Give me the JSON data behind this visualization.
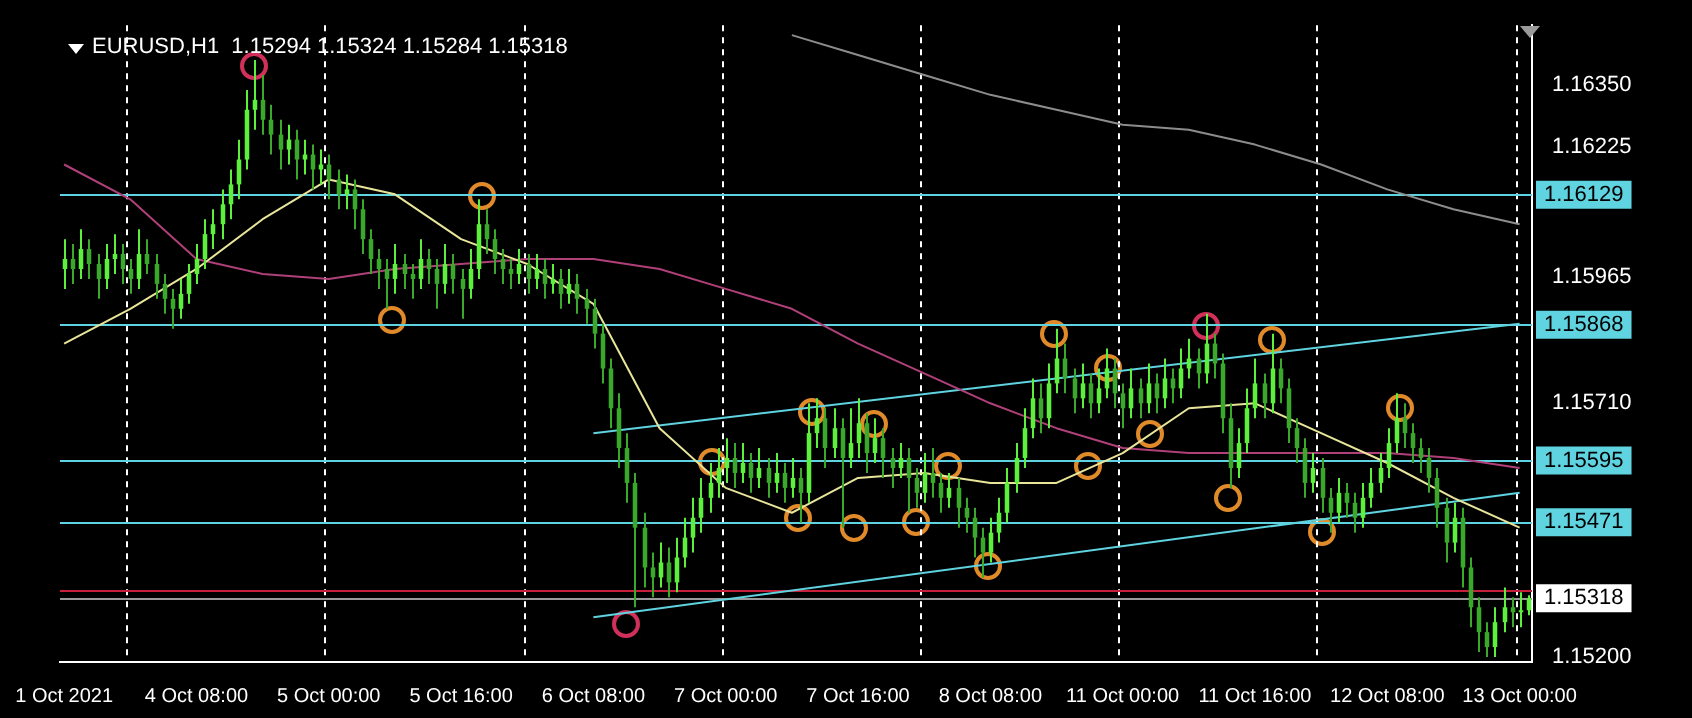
{
  "chart_data": {
    "type": "candlestick",
    "title": "EURUSD,H1  1.15294 1.15324 1.15284 1.15318",
    "colors": [
      "#5cf03c",
      "#3aa82a",
      "#5cf03c",
      "#3aa82a",
      "#3aa82a",
      "#5cf03c",
      "#5cf03c",
      "#3aa82a",
      "#3aa82a",
      "#5cf03c",
      "#3aa82a",
      "#3aa82a",
      "#3aa82a",
      "#3aa82a",
      "#5cf03c",
      "#5cf03c",
      "#5cf03c",
      "#5cf03c",
      "#5cf03c",
      "#5cf03c",
      "#5cf03c",
      "#5cf03c",
      "#5cf03c",
      "#5cf03c",
      "#3aa82a",
      "#3aa82a",
      "#3aa82a",
      "#5cf03c",
      "#3aa82a",
      "#5cf03c",
      "#3aa82a",
      "#5cf03c",
      "#3aa82a",
      "#3aa82a",
      "#5cf03c",
      "#3aa82a",
      "#3aa82a",
      "#3aa82a",
      "#3aa82a",
      "#3aa82a",
      "#5cf03c",
      "#3aa82a",
      "#3aa82a",
      "#5cf03c",
      "#3aa82a",
      "#3aa82a",
      "#5cf03c",
      "#3aa82a",
      "#3aa82a",
      "#5cf03c",
      "#5cf03c",
      "#3aa82a",
      "#3aa82a",
      "#3aa82a",
      "#3aa82a",
      "#5cf03c",
      "#3aa82a",
      "#5cf03c",
      "#3aa82a",
      "#5cf03c",
      "#3aa82a",
      "#5cf03c",
      "#3aa82a",
      "#3aa82a",
      "#3aa82a",
      "#3aa82a",
      "#3aa82a",
      "#3aa82a",
      "#3aa82a",
      "#3aa82a",
      "#3aa82a",
      "#3aa82a",
      "#5cf03c",
      "#3aa82a",
      "#5cf03c",
      "#5cf03c",
      "#5cf03c",
      "#5cf03c",
      "#5cf03c",
      "#5cf03c",
      "#5cf03c",
      "#3aa82a",
      "#5cf03c",
      "#3aa82a",
      "#5cf03c",
      "#3aa82a",
      "#5cf03c",
      "#3aa82a",
      "#5cf03c",
      "#3aa82a",
      "#5cf03c",
      "#5cf03c",
      "#3aa82a",
      "#5cf03c",
      "#3aa82a",
      "#5cf03c",
      "#5cf03c",
      "#3aa82a",
      "#5cf03c",
      "#3aa82a",
      "#3aa82a",
      "#5cf03c",
      "#3aa82a",
      "#3aa82a",
      "#5cf03c",
      "#3aa82a",
      "#3aa82a",
      "#5cf03c",
      "#3aa82a",
      "#3aa82a",
      "#3aa82a",
      "#3aa82a",
      "#5cf03c",
      "#5cf03c",
      "#5cf03c",
      "#5cf03c",
      "#5cf03c",
      "#5cf03c",
      "#3aa82a",
      "#5cf03c",
      "#5cf03c",
      "#3aa82a",
      "#3aa82a",
      "#5cf03c",
      "#3aa82a",
      "#5cf03c",
      "#5cf03c",
      "#3aa82a",
      "#3aa82a",
      "#5cf03c",
      "#3aa82a",
      "#5cf03c",
      "#3aa82a",
      "#5cf03c",
      "#3aa82a",
      "#5cf03c",
      "#5cf03c",
      "#3aa82a",
      "#5cf03c",
      "#3aa82a",
      "#3aa82a",
      "#3aa82a",
      "#5cf03c",
      "#5cf03c",
      "#5cf03c",
      "#3aa82a",
      "#5cf03c",
      "#3aa82a",
      "#3aa82a",
      "#3aa82a",
      "#3aa82a",
      "#5cf03c",
      "#3aa82a",
      "#3aa82a",
      "#5cf03c",
      "#3aa82a",
      "#3aa82a",
      "#5cf03c",
      "#5cf03c",
      "#5cf03c",
      "#5cf03c",
      "#5cf03c",
      "#3aa82a",
      "#3aa82a",
      "#3aa82a",
      "#3aa82a",
      "#3aa82a",
      "#3aa82a",
      "#5cf03c",
      "#3aa82a",
      "#3aa82a",
      "#3aa82a",
      "#3aa82a",
      "#5cf03c",
      "#5cf03c",
      "#3aa82a",
      "#5cf03c",
      "#5cf03c"
    ],
    "categories": [
      "1 Oct 2021",
      null,
      null,
      null,
      null,
      null,
      null,
      null,
      null,
      null,
      null,
      null,
      null,
      null,
      null,
      null,
      "4 Oct 08:00",
      null,
      null,
      null,
      null,
      null,
      null,
      null,
      null,
      null,
      null,
      null,
      null,
      null,
      null,
      null,
      "5 Oct 00:00",
      null,
      null,
      null,
      null,
      null,
      null,
      null,
      null,
      null,
      null,
      null,
      null,
      null,
      null,
      null,
      "5 Oct 16:00",
      null,
      null,
      null,
      null,
      null,
      null,
      null,
      null,
      null,
      null,
      null,
      null,
      null,
      null,
      null,
      "6 Oct 08:00",
      null,
      null,
      null,
      null,
      null,
      null,
      null,
      null,
      null,
      null,
      null,
      null,
      null,
      null,
      null,
      "7 Oct 00:00",
      null,
      null,
      null,
      null,
      null,
      null,
      null,
      null,
      null,
      null,
      null,
      null,
      null,
      null,
      null,
      "7 Oct 16:00",
      null,
      null,
      null,
      null,
      null,
      null,
      null,
      null,
      null,
      null,
      null,
      null,
      null,
      null,
      null,
      "8 Oct 08:00",
      null,
      null,
      null,
      null,
      null,
      null,
      null,
      null,
      null,
      null,
      null,
      null,
      null,
      null,
      null,
      "11 Oct 00:00",
      null,
      null,
      null,
      null,
      null,
      null,
      null,
      null,
      null,
      null,
      null,
      null,
      null,
      null,
      null,
      "11 Oct 16:00",
      null,
      null,
      null,
      null,
      null,
      null,
      null,
      null,
      null,
      null,
      null,
      null,
      null,
      null,
      null,
      "12 Oct 08:00",
      null,
      null,
      null,
      null,
      null,
      null,
      null,
      null,
      null,
      null,
      null,
      null,
      null,
      null,
      null,
      "13 Oct 00:00",
      null
    ],
    "ohlc": [
      [
        1.1598,
        1.1604,
        1.1594,
        1.16
      ],
      [
        1.16,
        1.1603,
        1.1595,
        1.1598
      ],
      [
        1.1598,
        1.1606,
        1.1596,
        1.1602
      ],
      [
        1.1602,
        1.1604,
        1.1596,
        1.1599
      ],
      [
        1.1599,
        1.1601,
        1.1592,
        1.1596
      ],
      [
        1.1596,
        1.1603,
        1.1594,
        1.16
      ],
      [
        1.16,
        1.1605,
        1.1597,
        1.1601
      ],
      [
        1.1601,
        1.1603,
        1.1595,
        1.1598
      ],
      [
        1.1598,
        1.16,
        1.1593,
        1.1596
      ],
      [
        1.1596,
        1.1606,
        1.1594,
        1.1601
      ],
      [
        1.1601,
        1.1604,
        1.1597,
        1.1599
      ],
      [
        1.1599,
        1.1601,
        1.1592,
        1.1595
      ],
      [
        1.1595,
        1.1597,
        1.1589,
        1.1592
      ],
      [
        1.1592,
        1.1594,
        1.1586,
        1.159
      ],
      [
        1.159,
        1.1596,
        1.1588,
        1.1593
      ],
      [
        1.1593,
        1.1599,
        1.1591,
        1.1597
      ],
      [
        1.1597,
        1.1603,
        1.1595,
        1.16
      ],
      [
        1.16,
        1.1608,
        1.1598,
        1.1605
      ],
      [
        1.1605,
        1.161,
        1.1602,
        1.1607
      ],
      [
        1.1607,
        1.1614,
        1.1604,
        1.1611
      ],
      [
        1.1611,
        1.1618,
        1.1608,
        1.1615
      ],
      [
        1.1615,
        1.1624,
        1.1612,
        1.162
      ],
      [
        1.162,
        1.1634,
        1.1618,
        1.163
      ],
      [
        1.163,
        1.164,
        1.1626,
        1.1632
      ],
      [
        1.1632,
        1.1637,
        1.1625,
        1.1628
      ],
      [
        1.1628,
        1.1631,
        1.1621,
        1.1625
      ],
      [
        1.1625,
        1.1628,
        1.1618,
        1.1622
      ],
      [
        1.1622,
        1.1627,
        1.1619,
        1.1624
      ],
      [
        1.1624,
        1.1626,
        1.1616,
        1.162
      ],
      [
        1.162,
        1.1624,
        1.1617,
        1.1621
      ],
      [
        1.1621,
        1.1623,
        1.1614,
        1.1618
      ],
      [
        1.1618,
        1.1622,
        1.1615,
        1.1619
      ],
      [
        1.1619,
        1.1621,
        1.1612,
        1.1616
      ],
      [
        1.1616,
        1.1618,
        1.161,
        1.1613
      ],
      [
        1.1613,
        1.1617,
        1.161,
        1.1614
      ],
      [
        1.1614,
        1.1616,
        1.1606,
        1.161
      ],
      [
        1.161,
        1.1612,
        1.1601,
        1.1604
      ],
      [
        1.1604,
        1.1606,
        1.1597,
        1.16
      ],
      [
        1.16,
        1.1602,
        1.1594,
        1.1598
      ],
      [
        1.1598,
        1.16,
        1.159,
        1.1596
      ],
      [
        1.1596,
        1.1603,
        1.1593,
        1.1599
      ],
      [
        1.1599,
        1.1601,
        1.1594,
        1.1597
      ],
      [
        1.1597,
        1.1599,
        1.1592,
        1.1596
      ],
      [
        1.1596,
        1.1604,
        1.1594,
        1.16
      ],
      [
        1.16,
        1.1602,
        1.1595,
        1.1598
      ],
      [
        1.1598,
        1.16,
        1.159,
        1.1595
      ],
      [
        1.1595,
        1.1603,
        1.1593,
        1.1599
      ],
      [
        1.1599,
        1.1601,
        1.1593,
        1.1596
      ],
      [
        1.1596,
        1.1598,
        1.1588,
        1.1594
      ],
      [
        1.1594,
        1.1602,
        1.1592,
        1.1598
      ],
      [
        1.1598,
        1.1612,
        1.1596,
        1.1607
      ],
      [
        1.1607,
        1.161,
        1.1601,
        1.1604
      ],
      [
        1.1604,
        1.1606,
        1.1597,
        1.16
      ],
      [
        1.16,
        1.1602,
        1.1595,
        1.1598
      ],
      [
        1.1598,
        1.16,
        1.1594,
        1.1597
      ],
      [
        1.1597,
        1.1602,
        1.1595,
        1.1599
      ],
      [
        1.1599,
        1.1601,
        1.1593,
        1.1596
      ],
      [
        1.1596,
        1.1601,
        1.1594,
        1.1598
      ],
      [
        1.1598,
        1.16,
        1.1592,
        1.1595
      ],
      [
        1.1595,
        1.1599,
        1.1593,
        1.1596
      ],
      [
        1.1596,
        1.1598,
        1.159,
        1.1593
      ],
      [
        1.1593,
        1.1598,
        1.1591,
        1.1595
      ],
      [
        1.1595,
        1.1597,
        1.1589,
        1.1592
      ],
      [
        1.1592,
        1.1594,
        1.1587,
        1.159
      ],
      [
        1.159,
        1.1592,
        1.1582,
        1.1585
      ],
      [
        1.1585,
        1.1587,
        1.1575,
        1.1578
      ],
      [
        1.1578,
        1.158,
        1.1566,
        1.157
      ],
      [
        1.157,
        1.1573,
        1.1558,
        1.1562
      ],
      [
        1.1562,
        1.1565,
        1.1551,
        1.1555
      ],
      [
        1.1555,
        1.1557,
        1.153,
        1.1546
      ],
      [
        1.1546,
        1.1549,
        1.1534,
        1.1538
      ],
      [
        1.1538,
        1.1541,
        1.1532,
        1.1536
      ],
      [
        1.1536,
        1.1543,
        1.1534,
        1.1539
      ],
      [
        1.1539,
        1.1542,
        1.1532,
        1.1535
      ],
      [
        1.1535,
        1.1544,
        1.1533,
        1.154
      ],
      [
        1.154,
        1.1548,
        1.1538,
        1.1544
      ],
      [
        1.1544,
        1.1552,
        1.1541,
        1.1548
      ],
      [
        1.1548,
        1.1556,
        1.1545,
        1.1552
      ],
      [
        1.1552,
        1.1559,
        1.1549,
        1.1555
      ],
      [
        1.1555,
        1.1562,
        1.1552,
        1.1558
      ],
      [
        1.1558,
        1.1564,
        1.1555,
        1.156
      ],
      [
        1.156,
        1.1563,
        1.1554,
        1.1557
      ],
      [
        1.1557,
        1.1563,
        1.1555,
        1.1559
      ],
      [
        1.1559,
        1.1561,
        1.1553,
        1.1556
      ],
      [
        1.1556,
        1.1562,
        1.1554,
        1.1558
      ],
      [
        1.1558,
        1.156,
        1.1552,
        1.1555
      ],
      [
        1.1555,
        1.1561,
        1.1553,
        1.1557
      ],
      [
        1.1557,
        1.1559,
        1.1551,
        1.1554
      ],
      [
        1.1554,
        1.156,
        1.1552,
        1.1556
      ],
      [
        1.1556,
        1.1558,
        1.1547,
        1.1553
      ],
      [
        1.1553,
        1.1571,
        1.1551,
        1.1565
      ],
      [
        1.1565,
        1.1572,
        1.1562,
        1.1568
      ],
      [
        1.1568,
        1.157,
        1.1558,
        1.1562
      ],
      [
        1.1562,
        1.157,
        1.156,
        1.1566
      ],
      [
        1.1566,
        1.1568,
        1.1546,
        1.156
      ],
      [
        1.156,
        1.157,
        1.1558,
        1.1563
      ],
      [
        1.1563,
        1.1572,
        1.156,
        1.1567
      ],
      [
        1.1567,
        1.1569,
        1.1557,
        1.1561
      ],
      [
        1.1561,
        1.1568,
        1.1559,
        1.1564
      ],
      [
        1.1564,
        1.1566,
        1.1556,
        1.156
      ],
      [
        1.156,
        1.1562,
        1.1554,
        1.1558
      ],
      [
        1.1558,
        1.1563,
        1.1556,
        1.156
      ],
      [
        1.156,
        1.1562,
        1.1549,
        1.1556
      ],
      [
        1.1556,
        1.1558,
        1.155,
        1.1553
      ],
      [
        1.1553,
        1.1561,
        1.1551,
        1.1557
      ],
      [
        1.1557,
        1.1562,
        1.1552,
        1.1555
      ],
      [
        1.1555,
        1.1557,
        1.1549,
        1.1552
      ],
      [
        1.1552,
        1.1557,
        1.155,
        1.1554
      ],
      [
        1.1554,
        1.1556,
        1.1546,
        1.155
      ],
      [
        1.155,
        1.1552,
        1.1545,
        1.1548
      ],
      [
        1.1548,
        1.155,
        1.154,
        1.1544
      ],
      [
        1.1544,
        1.1546,
        1.1536,
        1.1541
      ],
      [
        1.1541,
        1.1548,
        1.1539,
        1.1545
      ],
      [
        1.1545,
        1.1552,
        1.1543,
        1.1549
      ],
      [
        1.1549,
        1.1558,
        1.1547,
        1.1555
      ],
      [
        1.1555,
        1.1563,
        1.1553,
        1.156
      ],
      [
        1.156,
        1.157,
        1.1558,
        1.1566
      ],
      [
        1.1566,
        1.1576,
        1.1564,
        1.1572
      ],
      [
        1.1572,
        1.1575,
        1.1565,
        1.1568
      ],
      [
        1.1568,
        1.1579,
        1.1566,
        1.1575
      ],
      [
        1.1575,
        1.1586,
        1.1573,
        1.158
      ],
      [
        1.158,
        1.1583,
        1.1573,
        1.1576
      ],
      [
        1.1576,
        1.1578,
        1.1569,
        1.1572
      ],
      [
        1.1572,
        1.1579,
        1.157,
        1.1575
      ],
      [
        1.1575,
        1.1577,
        1.1568,
        1.1571
      ],
      [
        1.1571,
        1.1578,
        1.1569,
        1.1574
      ],
      [
        1.1574,
        1.1582,
        1.1572,
        1.1578
      ],
      [
        1.1578,
        1.158,
        1.157,
        1.1573
      ],
      [
        1.1573,
        1.1575,
        1.1566,
        1.157
      ],
      [
        1.157,
        1.1578,
        1.1568,
        1.1574
      ],
      [
        1.1574,
        1.1576,
        1.1568,
        1.1571
      ],
      [
        1.1571,
        1.1579,
        1.1569,
        1.1575
      ],
      [
        1.1575,
        1.1577,
        1.1569,
        1.1572
      ],
      [
        1.1572,
        1.158,
        1.157,
        1.1576
      ],
      [
        1.1576,
        1.1578,
        1.1571,
        1.1574
      ],
      [
        1.1574,
        1.1582,
        1.1572,
        1.1578
      ],
      [
        1.1578,
        1.1584,
        1.1576,
        1.158
      ],
      [
        1.158,
        1.1582,
        1.1574,
        1.1577
      ],
      [
        1.1577,
        1.1589,
        1.1575,
        1.1583
      ],
      [
        1.1583,
        1.1585,
        1.1576,
        1.1579
      ],
      [
        1.1579,
        1.1581,
        1.1565,
        1.1568
      ],
      [
        1.1568,
        1.1571,
        1.1554,
        1.1558
      ],
      [
        1.1558,
        1.1566,
        1.1556,
        1.1563
      ],
      [
        1.1563,
        1.1574,
        1.1561,
        1.157
      ],
      [
        1.157,
        1.158,
        1.1568,
        1.1575
      ],
      [
        1.1575,
        1.1577,
        1.1568,
        1.1571
      ],
      [
        1.1571,
        1.1585,
        1.1569,
        1.1578
      ],
      [
        1.1578,
        1.158,
        1.1571,
        1.1574
      ],
      [
        1.1574,
        1.1576,
        1.1563,
        1.1566
      ],
      [
        1.1566,
        1.1568,
        1.1559,
        1.1562
      ],
      [
        1.1562,
        1.1564,
        1.1552,
        1.1555
      ],
      [
        1.1555,
        1.1561,
        1.1553,
        1.1558
      ],
      [
        1.1558,
        1.156,
        1.1549,
        1.1552
      ],
      [
        1.1552,
        1.1554,
        1.1545,
        1.1549
      ],
      [
        1.1549,
        1.1556,
        1.1547,
        1.1553
      ],
      [
        1.1553,
        1.1555,
        1.1548,
        1.1551
      ],
      [
        1.1551,
        1.1553,
        1.1545,
        1.1548
      ],
      [
        1.1548,
        1.1555,
        1.1546,
        1.1552
      ],
      [
        1.1552,
        1.1558,
        1.155,
        1.1555
      ],
      [
        1.1555,
        1.1561,
        1.1553,
        1.1558
      ],
      [
        1.1558,
        1.1566,
        1.1556,
        1.1563
      ],
      [
        1.1563,
        1.1573,
        1.1561,
        1.1568
      ],
      [
        1.1568,
        1.1571,
        1.1562,
        1.1565
      ],
      [
        1.1565,
        1.1567,
        1.1559,
        1.1562
      ],
      [
        1.1562,
        1.1564,
        1.1557,
        1.156
      ],
      [
        1.156,
        1.1562,
        1.1553,
        1.1556
      ],
      [
        1.1556,
        1.1558,
        1.1546,
        1.155
      ],
      [
        1.155,
        1.1552,
        1.1539,
        1.1543
      ],
      [
        1.1543,
        1.1551,
        1.1541,
        1.1548
      ],
      [
        1.1548,
        1.155,
        1.1534,
        1.1538
      ],
      [
        1.1538,
        1.154,
        1.1526,
        1.153
      ],
      [
        1.153,
        1.1532,
        1.1521,
        1.1525
      ],
      [
        1.1525,
        1.1527,
        1.152,
        1.1522
      ],
      [
        1.1522,
        1.153,
        1.152,
        1.1527
      ],
      [
        1.1527,
        1.1534,
        1.1525,
        1.153
      ],
      [
        1.153,
        1.1532,
        1.1526,
        1.1529
      ],
      [
        1.1529,
        1.1533,
        1.1526,
        1.15294
      ],
      [
        1.15294,
        1.15324,
        1.15284,
        1.15318
      ]
    ],
    "series": [
      {
        "type": "line",
        "color": "#e8e59a",
        "values": [
          1.1583,
          null,
          null,
          null,
          null,
          null,
          null,
          null,
          1.159,
          null,
          null,
          null,
          null,
          null,
          null,
          null,
          1.1598,
          null,
          null,
          null,
          null,
          null,
          null,
          null,
          1.1608,
          null,
          null,
          null,
          null,
          null,
          null,
          null,
          1.1616,
          null,
          null,
          null,
          null,
          null,
          null,
          null,
          1.1613,
          null,
          null,
          null,
          null,
          null,
          null,
          null,
          1.1604,
          null,
          null,
          null,
          null,
          null,
          null,
          null,
          1.1599,
          null,
          null,
          null,
          null,
          null,
          null,
          null,
          1.1591,
          null,
          null,
          null,
          null,
          null,
          null,
          null,
          1.1566,
          null,
          null,
          null,
          null,
          null,
          null,
          null,
          1.1554,
          null,
          null,
          null,
          null,
          null,
          null,
          null,
          1.1549,
          null,
          null,
          null,
          null,
          null,
          null,
          null,
          1.1556,
          null,
          null,
          null,
          null,
          null,
          null,
          null,
          1.1557,
          null,
          null,
          null,
          null,
          null,
          null,
          null,
          1.1555,
          null,
          null,
          null,
          null,
          null,
          null,
          null,
          1.1555,
          null,
          null,
          null,
          null,
          null,
          null,
          null,
          1.1561,
          null,
          null,
          null,
          null,
          null,
          null,
          null,
          1.157,
          null,
          null,
          null,
          null,
          null,
          null,
          null,
          1.1571,
          null,
          null,
          null,
          null,
          null,
          null,
          null,
          1.1565,
          null,
          null,
          null,
          null,
          null,
          null,
          null,
          1.1559,
          null,
          null,
          null,
          null,
          null,
          null,
          null,
          1.1552,
          null,
          null,
          null,
          null,
          null,
          null,
          null,
          1.1546,
          null
        ]
      },
      {
        "type": "line",
        "color": "#b0407a",
        "values": [
          1.1619,
          null,
          null,
          null,
          null,
          null,
          null,
          null,
          1.1612,
          null,
          null,
          null,
          null,
          null,
          null,
          null,
          1.16,
          null,
          null,
          null,
          null,
          null,
          null,
          null,
          1.1597,
          null,
          null,
          null,
          null,
          null,
          null,
          null,
          1.1596,
          null,
          null,
          null,
          null,
          null,
          null,
          null,
          1.1598,
          null,
          null,
          null,
          null,
          null,
          null,
          null,
          1.1599,
          null,
          null,
          null,
          null,
          null,
          null,
          null,
          1.16,
          null,
          null,
          null,
          null,
          null,
          null,
          null,
          1.16,
          null,
          null,
          null,
          null,
          null,
          null,
          null,
          1.1598,
          null,
          null,
          null,
          null,
          null,
          null,
          null,
          1.1594,
          null,
          null,
          null,
          null,
          null,
          null,
          null,
          1.159,
          null,
          null,
          null,
          null,
          null,
          null,
          null,
          1.1583,
          null,
          null,
          null,
          null,
          null,
          null,
          null,
          1.1577,
          null,
          null,
          null,
          null,
          null,
          null,
          null,
          1.1571,
          null,
          null,
          null,
          null,
          null,
          null,
          null,
          1.1566,
          null,
          null,
          null,
          null,
          null,
          null,
          null,
          1.1562,
          null,
          null,
          null,
          null,
          null,
          null,
          null,
          1.1561,
          null,
          null,
          null,
          null,
          null,
          null,
          null,
          1.1561,
          null,
          null,
          null,
          null,
          null,
          null,
          null,
          1.1561,
          null,
          null,
          null,
          null,
          null,
          null,
          null,
          1.1561,
          null,
          null,
          null,
          null,
          null,
          null,
          null,
          1.156,
          null,
          null,
          null,
          null,
          null,
          null,
          null,
          1.1558,
          null
        ]
      },
      {
        "type": "line",
        "color": "#8c8c8c",
        "values": [
          null,
          null,
          null,
          null,
          null,
          null,
          null,
          null,
          null,
          null,
          null,
          null,
          null,
          null,
          null,
          null,
          null,
          null,
          null,
          null,
          null,
          null,
          null,
          null,
          null,
          null,
          null,
          null,
          null,
          null,
          null,
          null,
          null,
          null,
          null,
          null,
          null,
          null,
          null,
          null,
          null,
          null,
          null,
          null,
          null,
          null,
          null,
          null,
          null,
          null,
          null,
          null,
          null,
          null,
          null,
          null,
          null,
          null,
          null,
          null,
          null,
          null,
          null,
          null,
          null,
          null,
          null,
          null,
          null,
          null,
          null,
          null,
          null,
          null,
          null,
          null,
          null,
          null,
          null,
          null,
          null,
          null,
          null,
          null,
          null,
          null,
          null,
          null,
          1.1645,
          null,
          null,
          null,
          null,
          null,
          null,
          null,
          1.1641,
          null,
          null,
          null,
          null,
          null,
          null,
          null,
          1.1637,
          null,
          null,
          null,
          null,
          null,
          null,
          null,
          1.1633,
          null,
          null,
          null,
          null,
          null,
          null,
          null,
          1.163,
          null,
          null,
          null,
          null,
          null,
          null,
          null,
          1.1627,
          null,
          null,
          null,
          null,
          null,
          null,
          null,
          1.1626,
          null,
          null,
          null,
          null,
          null,
          null,
          null,
          1.1623,
          null,
          null,
          null,
          null,
          null,
          null,
          null,
          1.1619,
          null,
          null,
          null,
          null,
          null,
          null,
          null,
          1.1614,
          null,
          null,
          null,
          null,
          null,
          null,
          null,
          1.161,
          null,
          null,
          null,
          null,
          null,
          null,
          null,
          1.1607,
          null
        ]
      },
      {
        "type": "line",
        "color": "#5fd3e0",
        "values": [
          null,
          null,
          null,
          null,
          null,
          null,
          null,
          null,
          null,
          null,
          null,
          null,
          null,
          null,
          null,
          null,
          null,
          null,
          null,
          null,
          null,
          null,
          null,
          null,
          null,
          null,
          null,
          null,
          null,
          null,
          null,
          null,
          null,
          null,
          null,
          null,
          null,
          null,
          null,
          null,
          null,
          null,
          null,
          null,
          null,
          null,
          null,
          null,
          null,
          null,
          null,
          null,
          null,
          null,
          null,
          null,
          null,
          null,
          null,
          null,
          null,
          null,
          null,
          null,
          1.1565,
          null,
          null,
          null,
          null,
          null,
          null,
          null,
          null,
          null,
          null,
          null,
          null,
          null,
          null,
          null,
          null,
          null,
          null,
          null,
          null,
          null,
          null,
          null,
          null,
          null,
          null,
          null,
          null,
          null,
          null,
          null,
          null,
          null,
          null,
          null,
          null,
          null,
          null,
          null,
          null,
          null,
          null,
          null,
          null,
          null,
          null,
          null,
          null,
          null,
          null,
          null,
          null,
          null,
          null,
          null,
          null,
          null,
          null,
          null,
          null,
          null,
          null,
          null,
          null,
          null,
          null,
          null,
          null,
          null,
          null,
          null,
          null,
          null,
          null,
          null,
          null,
          null,
          null,
          null,
          null,
          null,
          null,
          null,
          null,
          null,
          null,
          null,
          null,
          null,
          null,
          null,
          null,
          null,
          null,
          null,
          null,
          null,
          null,
          null,
          null,
          null,
          null,
          null,
          null,
          null,
          null,
          null,
          null,
          null,
          null,
          null,
          1.1587,
          null
        ]
      },
      {
        "type": "line",
        "color": "#5fd3e0",
        "values": [
          null,
          null,
          null,
          null,
          null,
          null,
          null,
          null,
          null,
          null,
          null,
          null,
          null,
          null,
          null,
          null,
          null,
          null,
          null,
          null,
          null,
          null,
          null,
          null,
          null,
          null,
          null,
          null,
          null,
          null,
          null,
          null,
          null,
          null,
          null,
          null,
          null,
          null,
          null,
          null,
          null,
          null,
          null,
          null,
          null,
          null,
          null,
          null,
          null,
          null,
          null,
          null,
          null,
          null,
          null,
          null,
          null,
          null,
          null,
          null,
          null,
          null,
          null,
          null,
          1.1528,
          null,
          null,
          null,
          null,
          null,
          null,
          null,
          null,
          null,
          null,
          null,
          null,
          null,
          null,
          null,
          null,
          null,
          null,
          null,
          null,
          null,
          null,
          null,
          null,
          null,
          null,
          null,
          null,
          null,
          null,
          null,
          null,
          null,
          null,
          null,
          null,
          null,
          null,
          null,
          null,
          null,
          null,
          null,
          null,
          null,
          null,
          null,
          null,
          null,
          null,
          null,
          null,
          null,
          null,
          null,
          null,
          null,
          null,
          null,
          null,
          null,
          null,
          null,
          null,
          null,
          null,
          null,
          null,
          null,
          null,
          null,
          null,
          null,
          null,
          null,
          null,
          null,
          null,
          null,
          null,
          null,
          null,
          null,
          null,
          null,
          null,
          null,
          null,
          null,
          null,
          null,
          null,
          null,
          null,
          null,
          null,
          null,
          null,
          null,
          null,
          null,
          null,
          null,
          null,
          null,
          null,
          null,
          null,
          null,
          null,
          null,
          1.1553,
          null
        ]
      }
    ],
    "ylim": [
      1.1519,
      1.1647
    ],
    "yticks": [
      {
        "value": 1.1635,
        "label": "1.16350"
      },
      {
        "value": 1.16225,
        "label": "1.16225"
      },
      {
        "value": 1.15965,
        "label": "1.15965"
      },
      {
        "value": 1.1571,
        "label": "1.15710"
      },
      {
        "value": 1.152,
        "label": "1.15200"
      }
    ],
    "ref_lines": [
      {
        "axis": "y",
        "value": 1.16129,
        "label": "1.16129",
        "color": "#5fd3e0"
      },
      {
        "axis": "y",
        "value": 1.15868,
        "label": "1.15868",
        "color": "#5fd3e0"
      },
      {
        "axis": "y",
        "value": 1.15595,
        "label": "1.15595",
        "color": "#5fd3e0"
      },
      {
        "axis": "y",
        "value": 1.15471,
        "label": "1.15471",
        "color": "#5fd3e0"
      },
      {
        "axis": "y",
        "value": 1.15335,
        "color": "#c8203a"
      },
      {
        "axis": "y",
        "value": 1.15318,
        "label": "1.15318",
        "color": "#9a9a9a"
      }
    ],
    "grid": "x",
    "marker": "none",
    "line_style": "solid"
  }
}
